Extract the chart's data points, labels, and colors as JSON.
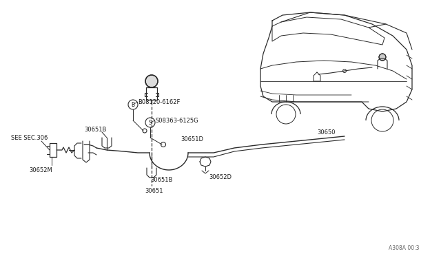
{
  "bg_color": "#ffffff",
  "line_color": "#2a2a2a",
  "text_color": "#1a1a1a",
  "fig_width": 6.4,
  "fig_height": 3.72,
  "dpi": 100,
  "bottom_ref": "A308A 00:3",
  "labels": {
    "see_sec": "SEE SEC.306",
    "30651B_top": "30651B",
    "30651B_bot": "30651B",
    "30652M": "30652M",
    "30651": "30651",
    "30651D": "30651D",
    "30652D": "30652D",
    "30650": "30650",
    "b_bolt": "B08120-6162F",
    "s_bolt": "S08363-6125G"
  }
}
